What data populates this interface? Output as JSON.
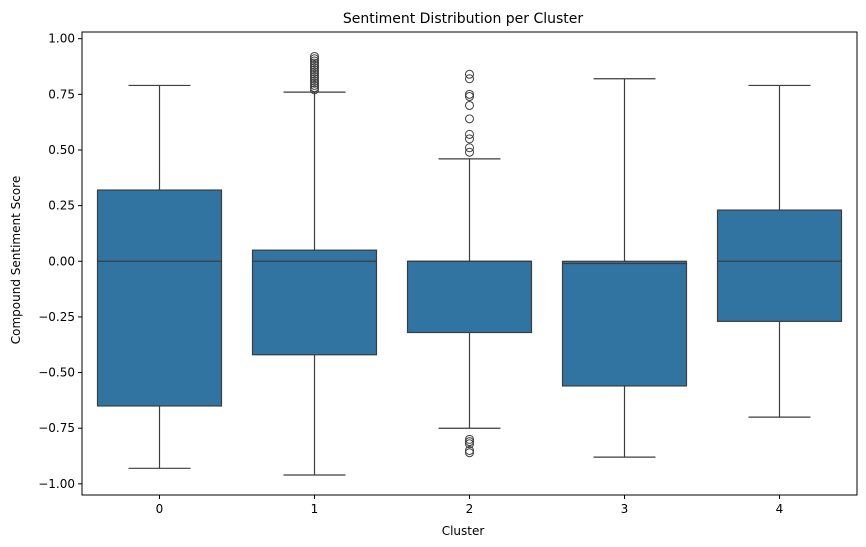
{
  "chart_data": {
    "type": "box",
    "title": "Sentiment Distribution per Cluster",
    "xlabel": "Cluster",
    "ylabel": "Compound Sentiment Score",
    "ylim": [
      -1.05,
      1.03
    ],
    "yticks": [
      "1.00",
      "0.75",
      "0.50",
      "0.25",
      "0.00",
      "−0.25",
      "−0.50",
      "−0.75",
      "−1.00"
    ],
    "ytick_values": [
      1.0,
      0.75,
      0.5,
      0.25,
      0.0,
      -0.25,
      -0.5,
      -0.75,
      -1.0
    ],
    "categories": [
      "0",
      "1",
      "2",
      "3",
      "4"
    ],
    "color": "#3274a1",
    "line_color": "#3d3d3d",
    "boxes": [
      {
        "category": "0",
        "whisker_low": -0.93,
        "q1": -0.65,
        "median": 0.0,
        "q3": 0.32,
        "whisker_high": 0.79,
        "outliers": []
      },
      {
        "category": "1",
        "whisker_low": -0.96,
        "q1": -0.42,
        "median": 0.0,
        "q3": 0.05,
        "whisker_high": 0.76,
        "outliers": [
          0.77,
          0.78,
          0.79,
          0.8,
          0.81,
          0.82,
          0.83,
          0.84,
          0.85,
          0.86,
          0.87,
          0.88,
          0.89,
          0.9,
          0.91,
          0.92
        ]
      },
      {
        "category": "2",
        "whisker_low": -0.75,
        "q1": -0.32,
        "median": 0.0,
        "q3": 0.0,
        "whisker_high": 0.46,
        "outliers": [
          0.84,
          0.82,
          0.75,
          0.74,
          0.7,
          0.64,
          0.57,
          0.55,
          0.51,
          0.49,
          -0.8,
          -0.81,
          -0.82,
          -0.85,
          -0.86
        ]
      },
      {
        "category": "3",
        "whisker_low": -0.88,
        "q1": -0.56,
        "median": -0.01,
        "q3": 0.0,
        "whisker_high": 0.82,
        "outliers": []
      },
      {
        "category": "4",
        "whisker_low": -0.7,
        "q1": -0.27,
        "median": 0.0,
        "q3": 0.23,
        "whisker_high": 0.79,
        "outliers": []
      }
    ]
  }
}
